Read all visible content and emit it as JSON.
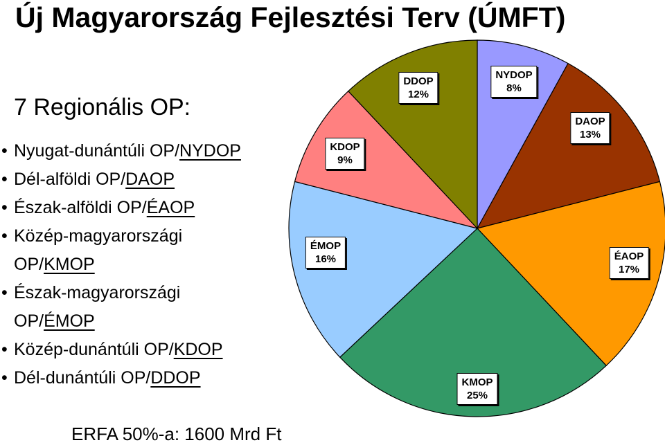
{
  "title": "Új Magyarország Fejlesztési Terv (ÚMFT)",
  "subtitle": "7 Regionális OP:",
  "regions": [
    {
      "line1": "Nyugat-dunántúli OP/",
      "line2": "",
      "abbr": "NYDOP"
    },
    {
      "line1": "Dél-alföldi OP/",
      "line2": "",
      "abbr": "DAOP"
    },
    {
      "line1": "Észak-alföldi OP/",
      "line2": "",
      "abbr": "ÉAOP"
    },
    {
      "line1": "Közép-magyarországi",
      "line2": "OP/",
      "abbr": "KMOP"
    },
    {
      "line1": "Észak-magyarországi",
      "line2": "OP/",
      "abbr": "ÉMOP"
    },
    {
      "line1": "Közép-dunántúli OP/",
      "line2": "",
      "abbr": "KDOP"
    },
    {
      "line1": "Dél-dunántúli OP/",
      "line2": "",
      "abbr": "DDOP"
    }
  ],
  "footer": "ERFA 50%-a: 1600 Mrd Ft",
  "chart_data": {
    "type": "pie",
    "slices": [
      {
        "name": "NYDOP",
        "value": 8,
        "label": "8%",
        "color": "#9999ff"
      },
      {
        "name": "DAOP",
        "value": 13,
        "label": "13%",
        "color": "#993300"
      },
      {
        "name": "ÉAOP",
        "value": 17,
        "label": "17%",
        "color": "#ff9900"
      },
      {
        "name": "KMOP",
        "value": 25,
        "label": "25%",
        "color": "#339966"
      },
      {
        "name": "ÉMOP",
        "value": 16,
        "label": "16%",
        "color": "#99ccff"
      },
      {
        "name": "KDOP",
        "value": 9,
        "label": "9%",
        "color": "#ff8080"
      },
      {
        "name": "DDOP",
        "value": 12,
        "label": "12%",
        "color": "#808000"
      }
    ]
  }
}
